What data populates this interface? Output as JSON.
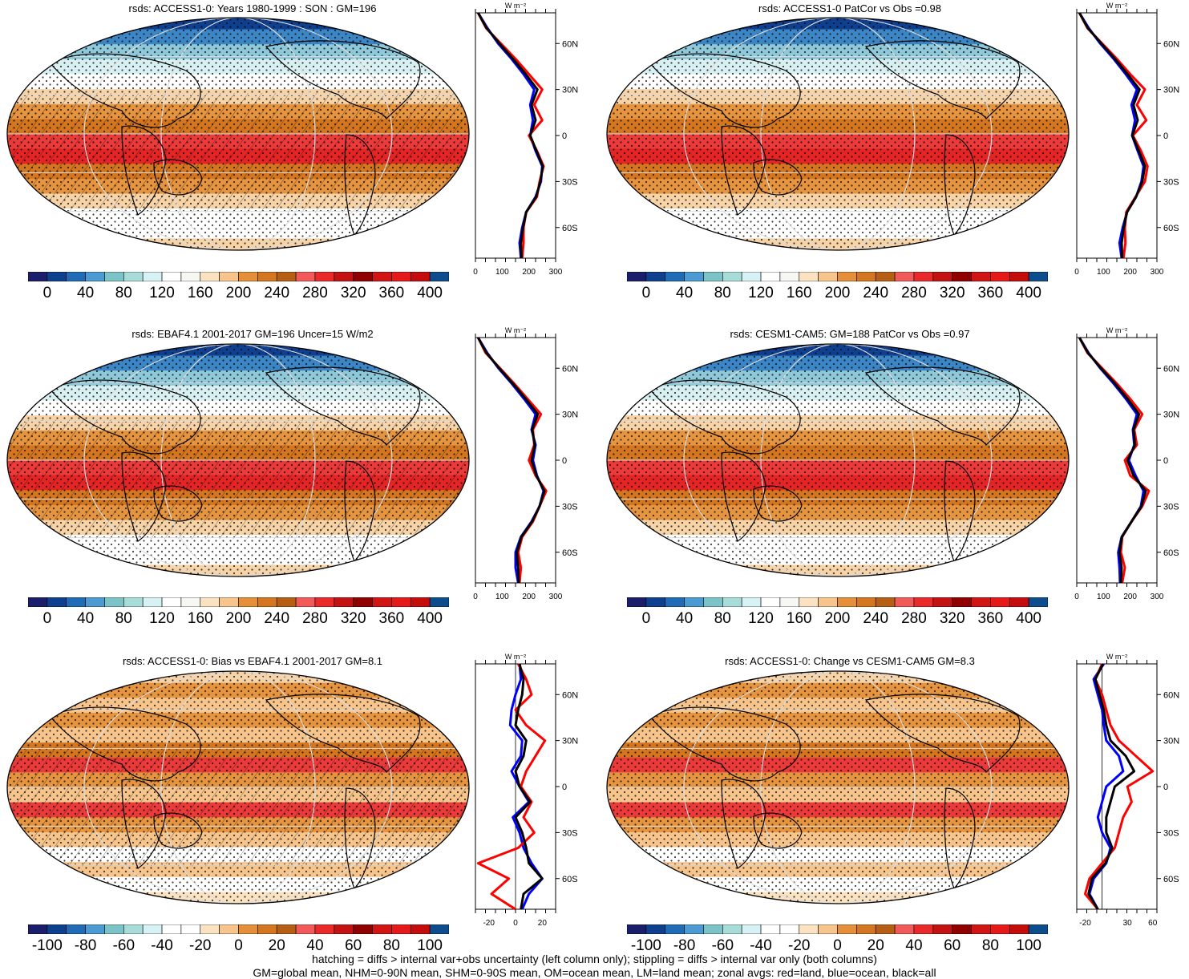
{
  "colors": {
    "absolute_scale": [
      "#1b1f6b",
      "#0f3f8f",
      "#1f6bb6",
      "#4b9ad1",
      "#7cc3c7",
      "#a8dcd8",
      "#d6f2f4",
      "#ffffff",
      "#f6f6f2",
      "#fbe2c0",
      "#f7c58c",
      "#e58f3a",
      "#d3761f",
      "#b65e14",
      "#f25a5a",
      "#ea2a2a",
      "#c41212",
      "#900000",
      "#d11414",
      "#e51919",
      "#c40c0c",
      "#0d4c8d"
    ],
    "diff_scale": [
      "#1b1f6b",
      "#0f3f8f",
      "#1f6bb6",
      "#4b9ad1",
      "#7cc3c7",
      "#a8dcd8",
      "#d6f2f4",
      "#ffffff",
      "#ffffff",
      "#fbe2c0",
      "#f7c58c",
      "#e58f3a",
      "#d3761f",
      "#b65e14",
      "#f25a5a",
      "#ea2a2a",
      "#c41212",
      "#900000",
      "#d11414",
      "#e51919",
      "#c40c0c",
      "#0d4c8d"
    ],
    "land": "#ff0000",
    "ocean": "#0000ff",
    "all": "#000000"
  },
  "panels": [
    {
      "id": "p1",
      "title": "rsds: ACCESS1-0: Years 1980-1999 : SON : GM=196",
      "kind": "absolute",
      "colorbar_labels": [
        "0",
        "40",
        "80",
        "120",
        "160",
        "200",
        "240",
        "280",
        "320",
        "360",
        "400"
      ],
      "zonal": {
        "xlim": [
          0,
          300
        ],
        "xticks": [
          "0",
          "100",
          "200",
          "300"
        ],
        "yticks": [
          "60N",
          "30N",
          "0",
          "30S",
          "60S"
        ],
        "units": "W m⁻²",
        "lat": [
          80,
          70,
          60,
          50,
          40,
          30,
          20,
          10,
          0,
          -10,
          -20,
          -30,
          -40,
          -50,
          -60,
          -70,
          -80
        ],
        "land": [
          10,
          40,
          95,
          150,
          200,
          250,
          220,
          250,
          200,
          230,
          255,
          240,
          230,
          190,
          180,
          180,
          175
        ],
        "ocean": [
          10,
          45,
          85,
          135,
          180,
          220,
          205,
          215,
          205,
          225,
          250,
          245,
          225,
          190,
          175,
          165,
          170
        ],
        "all": [
          10,
          42,
          90,
          140,
          188,
          232,
          210,
          225,
          205,
          228,
          252,
          243,
          227,
          190,
          178,
          170,
          172
        ]
      }
    },
    {
      "id": "p2",
      "title": "rsds: ACCESS1-0 PatCor vs Obs =0.98",
      "kind": "absolute",
      "colorbar_labels": [
        "0",
        "40",
        "80",
        "120",
        "160",
        "200",
        "240",
        "280",
        "320",
        "360",
        "400"
      ],
      "zonal": {
        "xlim": [
          0,
          300
        ],
        "xticks": [
          "0",
          "100",
          "200",
          "300"
        ],
        "yticks": [
          "60N",
          "30N",
          "0",
          "30S",
          "60S"
        ],
        "units": "W m⁻²",
        "lat": [
          80,
          70,
          60,
          50,
          40,
          30,
          20,
          10,
          0,
          -10,
          -20,
          -30,
          -40,
          -50,
          -60,
          -70,
          -80
        ],
        "land": [
          10,
          40,
          95,
          150,
          200,
          255,
          225,
          260,
          210,
          240,
          265,
          255,
          220,
          185,
          180,
          182,
          175
        ],
        "ocean": [
          10,
          45,
          88,
          138,
          183,
          225,
          205,
          218,
          207,
          228,
          250,
          242,
          222,
          188,
          172,
          160,
          168
        ],
        "all": [
          10,
          42,
          92,
          143,
          190,
          235,
          212,
          228,
          208,
          232,
          255,
          245,
          222,
          188,
          176,
          168,
          170
        ]
      }
    },
    {
      "id": "p3",
      "title": "rsds: EBAF4.1 2001-2017 GM=196 Uncer=15 W/m2",
      "kind": "absolute",
      "colorbar_labels": [
        "0",
        "40",
        "80",
        "120",
        "160",
        "200",
        "240",
        "280",
        "320",
        "360",
        "400"
      ],
      "zonal": {
        "xlim": [
          0,
          300
        ],
        "xticks": [
          "0",
          "100",
          "200",
          "300"
        ],
        "yticks": [
          "60N",
          "30N",
          "0",
          "30S",
          "60S"
        ],
        "units": "W m⁻²",
        "lat": [
          80,
          70,
          60,
          50,
          40,
          30,
          20,
          10,
          0,
          -10,
          -20,
          -30,
          -40,
          -50,
          -60,
          -70,
          -80
        ],
        "land": [
          10,
          38,
          92,
          145,
          195,
          245,
          215,
          220,
          200,
          225,
          265,
          240,
          215,
          175,
          160,
          170,
          165
        ],
        "ocean": [
          10,
          44,
          86,
          136,
          182,
          225,
          210,
          225,
          215,
          230,
          255,
          240,
          210,
          170,
          150,
          150,
          160
        ],
        "all": [
          10,
          41,
          89,
          140,
          188,
          233,
          212,
          222,
          210,
          228,
          258,
          240,
          212,
          172,
          155,
          160,
          162
        ]
      }
    },
    {
      "id": "p4",
      "title": "rsds: CESM1-CAM5: GM=188 PatCor vs Obs =0.97",
      "kind": "absolute",
      "colorbar_labels": [
        "0",
        "40",
        "80",
        "120",
        "160",
        "200",
        "240",
        "280",
        "320",
        "360",
        "400"
      ],
      "zonal": {
        "xlim": [
          0,
          300
        ],
        "xticks": [
          "0",
          "100",
          "200",
          "300"
        ],
        "yticks": [
          "60N",
          "30N",
          "0",
          "30S",
          "60S"
        ],
        "units": "W m⁻²",
        "lat": [
          80,
          70,
          60,
          50,
          40,
          30,
          20,
          10,
          0,
          -10,
          -20,
          -30,
          -40,
          -50,
          -60,
          -70,
          -80
        ],
        "land": [
          10,
          40,
          95,
          150,
          200,
          245,
          215,
          225,
          180,
          200,
          270,
          245,
          205,
          170,
          165,
          180,
          170
        ],
        "ocean": [
          10,
          44,
          88,
          138,
          184,
          225,
          210,
          215,
          195,
          220,
          250,
          240,
          205,
          168,
          155,
          160,
          162
        ],
        "all": [
          10,
          42,
          91,
          143,
          190,
          233,
          212,
          218,
          190,
          212,
          258,
          242,
          205,
          169,
          160,
          168,
          165
        ]
      }
    },
    {
      "id": "p5",
      "title": "rsds: ACCESS1-0: Bias vs EBAF4.1 2001-2017  GM=8.1",
      "kind": "diff",
      "colorbar_labels": [
        "-100",
        "-80",
        "-60",
        "-40",
        "-20",
        "0",
        "20",
        "40",
        "60",
        "80",
        "100"
      ],
      "zonal": {
        "xlim": [
          -30,
          30
        ],
        "xticks": [
          "-20",
          "0",
          "20"
        ],
        "yticks": [
          "60N",
          "30N",
          "0",
          "30S",
          "60S"
        ],
        "units": "W m⁻²",
        "lat": [
          80,
          70,
          60,
          50,
          40,
          30,
          20,
          10,
          0,
          -10,
          -20,
          -30,
          -40,
          -50,
          -60,
          -70,
          -80
        ],
        "land": [
          2,
          8,
          12,
          0,
          8,
          22,
          15,
          8,
          4,
          12,
          6,
          14,
          2,
          -28,
          -5,
          -18,
          0
        ],
        "ocean": [
          3,
          4,
          0,
          -3,
          -4,
          5,
          4,
          -3,
          3,
          10,
          -2,
          3,
          6,
          12,
          20,
          10,
          5
        ],
        "all": [
          3,
          6,
          5,
          2,
          0,
          8,
          6,
          0,
          3,
          11,
          0,
          5,
          8,
          10,
          20,
          6,
          4
        ]
      }
    },
    {
      "id": "p6",
      "title": "rsds: ACCESS1-0: Change vs CESM1-CAM5 GM=8.3",
      "kind": "diff",
      "colorbar_labels": [
        "-100",
        "-80",
        "-60",
        "-40",
        "-20",
        "0",
        "20",
        "40",
        "60",
        "80",
        "100"
      ],
      "zonal": {
        "xlim": [
          -30,
          65
        ],
        "xticks": [
          "-20",
          "30",
          "60"
        ],
        "yticks": [
          "60N",
          "30N",
          "0",
          "30S",
          "60S"
        ],
        "units": "W m⁻²",
        "lat": [
          80,
          70,
          60,
          50,
          40,
          30,
          20,
          10,
          0,
          -10,
          -20,
          -30,
          -40,
          -50,
          -60,
          -70,
          -80
        ],
        "land": [
          0,
          -8,
          0,
          5,
          10,
          20,
          40,
          60,
          30,
          35,
          25,
          20,
          15,
          0,
          -15,
          -20,
          -5
        ],
        "ocean": [
          2,
          -10,
          -5,
          0,
          2,
          5,
          20,
          25,
          5,
          0,
          -5,
          0,
          10,
          5,
          -10,
          -15,
          -5
        ],
        "all": [
          1,
          -8,
          -3,
          2,
          5,
          10,
          28,
          38,
          15,
          10,
          5,
          5,
          12,
          4,
          -12,
          -16,
          -5
        ]
      }
    }
  ],
  "footer": {
    "line1": "hatching = diffs > internal var+obs uncertainty (left column only); stippling = diffs > internal var only (both columns)",
    "line2": "GM=global mean, NHM=0-90N mean, SHM=0-90S mean, OM=ocean mean, LM=land mean; zonal avgs: red=land, blue=ocean, black=all"
  }
}
